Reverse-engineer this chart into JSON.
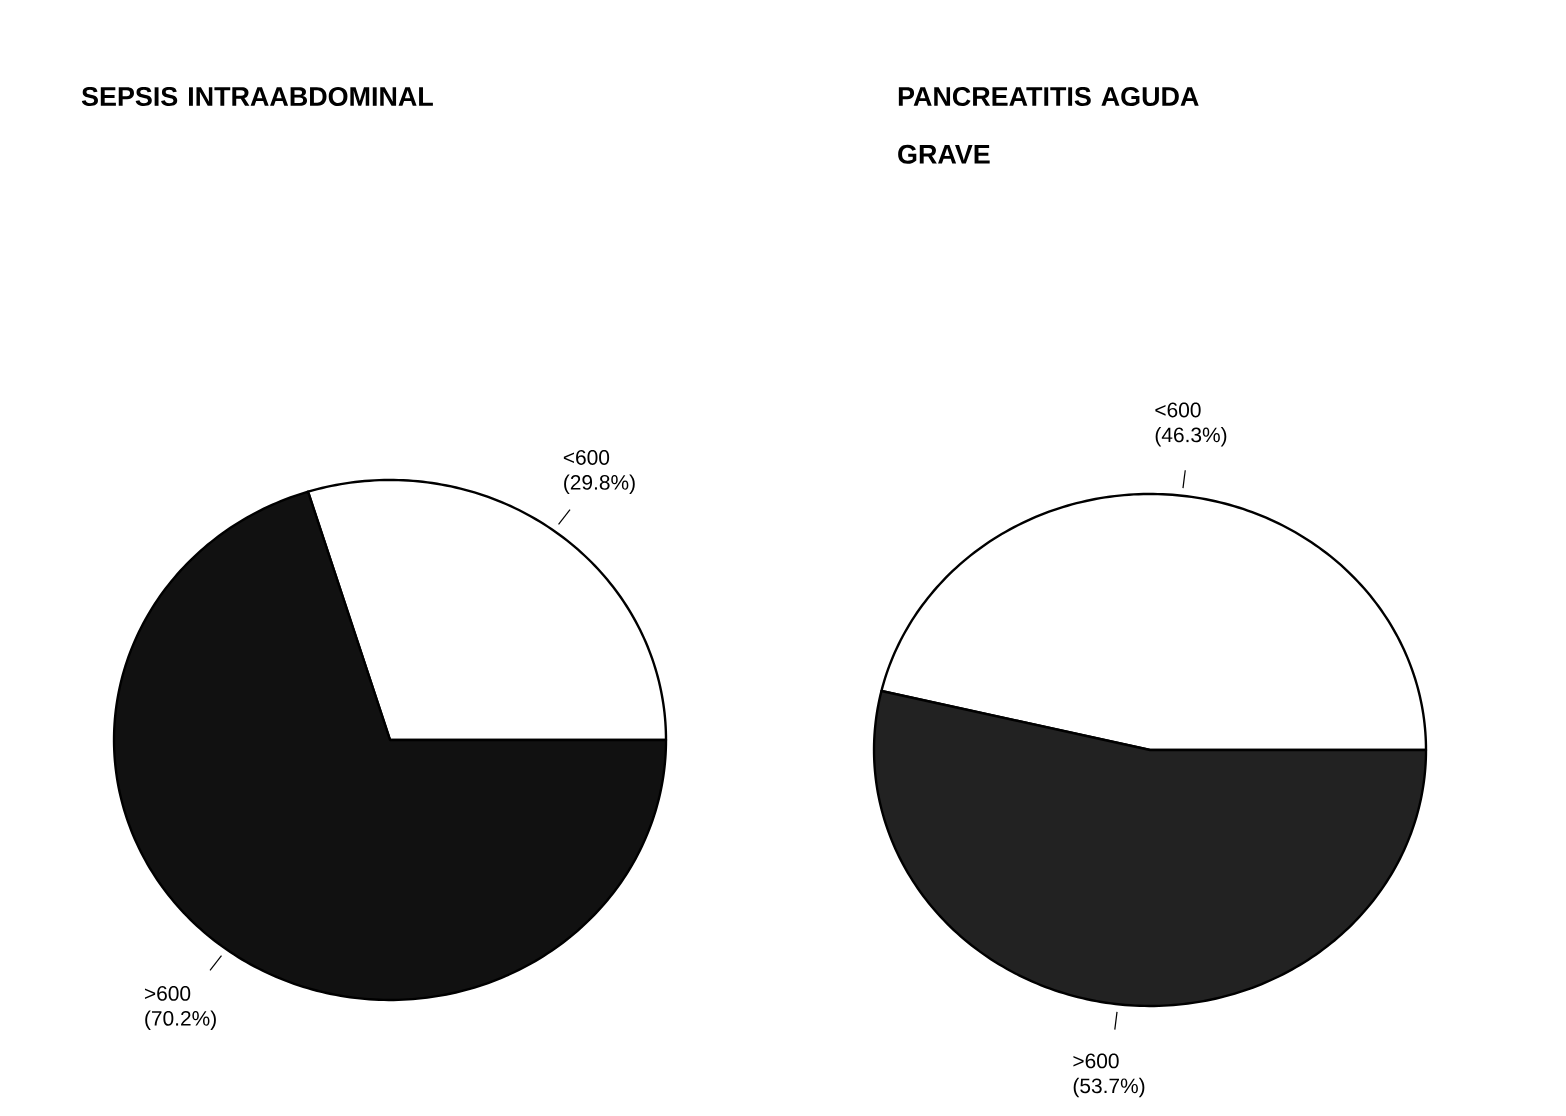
{
  "chart_data": [
    {
      "type": "pie",
      "title": "SEPSIS INTRAABDOMINAL",
      "categories": [
        "<600",
        ">600"
      ],
      "values": [
        29.8,
        70.2
      ],
      "value_labels": [
        "(29.8%)",
        "(70.2%)"
      ],
      "colors": [
        "#ffffff",
        "#111111"
      ]
    },
    {
      "type": "pie",
      "title": "PANCREATITIS AGUDA GRAVE",
      "categories": [
        "<600",
        ">600"
      ],
      "values": [
        46.3,
        53.7
      ],
      "value_labels": [
        "(46.3%)",
        "(53.7%)"
      ],
      "colors": [
        "#ffffff",
        "#222222"
      ]
    }
  ]
}
